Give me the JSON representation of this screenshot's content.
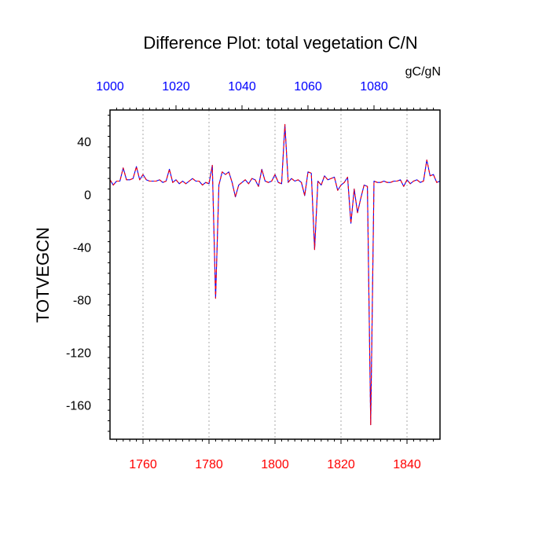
{
  "chart_data": {
    "type": "line",
    "title": "Difference Plot: total vegetation C/N",
    "units": "gC/gN",
    "ylabel": "TOTVEGCN",
    "ylim": [
      -186,
      64
    ],
    "y_ticks": [
      40,
      0,
      -40,
      -80,
      -120,
      -160
    ],
    "y_tick_labels": [
      "40",
      "0",
      "-40",
      "-80",
      "-120",
      "-160"
    ],
    "x_bottom": {
      "range": [
        1750,
        1850
      ],
      "ticks": [
        1760,
        1780,
        1800,
        1820,
        1840
      ],
      "tick_labels": [
        "1760",
        "1780",
        "1800",
        "1820",
        "1840"
      ],
      "color": "#ff0000"
    },
    "x_top": {
      "range": [
        1000,
        1100
      ],
      "ticks": [
        1000,
        1020,
        1040,
        1060,
        1080
      ],
      "tick_labels": [
        "1000",
        "1020",
        "1040",
        "1060",
        "1080"
      ],
      "color": "#0000ff"
    },
    "grid": "vertical dotted at bottom ticks",
    "series": [
      {
        "color": "#0000ff",
        "style": "solid",
        "x": [
          1750,
          1751,
          1752,
          1753,
          1754,
          1755,
          1756,
          1757,
          1758,
          1759,
          1760,
          1761,
          1762,
          1763,
          1764,
          1765,
          1766,
          1767,
          1768,
          1769,
          1770,
          1771,
          1772,
          1773,
          1774,
          1775,
          1776,
          1777,
          1778,
          1779,
          1780,
          1781,
          1782,
          1783,
          1784,
          1785,
          1786,
          1787,
          1788,
          1789,
          1790,
          1791,
          1792,
          1793,
          1794,
          1795,
          1796,
          1797,
          1798,
          1799,
          1800,
          1801,
          1802,
          1803,
          1804,
          1805,
          1806,
          1807,
          1808,
          1809,
          1810,
          1811,
          1812,
          1813,
          1814,
          1815,
          1816,
          1817,
          1818,
          1819,
          1820,
          1821,
          1822,
          1823,
          1824,
          1825,
          1826,
          1827,
          1828,
          1829,
          1830,
          1831,
          1832,
          1833,
          1834,
          1835,
          1836,
          1837,
          1838,
          1839,
          1840,
          1841,
          1842,
          1843,
          1844,
          1845,
          1846,
          1847,
          1848,
          1849,
          1850
        ],
        "values": [
          11,
          7,
          10,
          10,
          20,
          11,
          11,
          12,
          21,
          11,
          15,
          11,
          10,
          10,
          10,
          11,
          9,
          10,
          19,
          9,
          11,
          8,
          10,
          8,
          10,
          12,
          10,
          10,
          7,
          9,
          8,
          22,
          -79,
          7,
          17,
          15,
          17,
          9,
          -2,
          7,
          9,
          11,
          8,
          12,
          11,
          6,
          19,
          10,
          9,
          10,
          15,
          9,
          8,
          53,
          9,
          12,
          10,
          11,
          9,
          -1,
          17,
          16,
          -42,
          10,
          7,
          14,
          11,
          12,
          13,
          3,
          7,
          9,
          13,
          -22,
          4,
          -14,
          -3,
          7,
          6,
          -175,
          10,
          9,
          9,
          10,
          9,
          9,
          10,
          10,
          11,
          6,
          11,
          8,
          10,
          11,
          9,
          10,
          26,
          14,
          15,
          9,
          10
        ]
      },
      {
        "color": "#ff0000",
        "style": "dashed",
        "x": [
          1750,
          1751,
          1752,
          1753,
          1754,
          1755,
          1756,
          1757,
          1758,
          1759,
          1760,
          1761,
          1762,
          1763,
          1764,
          1765,
          1766,
          1767,
          1768,
          1769,
          1770,
          1771,
          1772,
          1773,
          1774,
          1775,
          1776,
          1777,
          1778,
          1779,
          1780,
          1781,
          1782,
          1783,
          1784,
          1785,
          1786,
          1787,
          1788,
          1789,
          1790,
          1791,
          1792,
          1793,
          1794,
          1795,
          1796,
          1797,
          1798,
          1799,
          1800,
          1801,
          1802,
          1803,
          1804,
          1805,
          1806,
          1807,
          1808,
          1809,
          1810,
          1811,
          1812,
          1813,
          1814,
          1815,
          1816,
          1817,
          1818,
          1819,
          1820,
          1821,
          1822,
          1823,
          1824,
          1825,
          1826,
          1827,
          1828,
          1829,
          1830,
          1831,
          1832,
          1833,
          1834,
          1835,
          1836,
          1837,
          1838,
          1839,
          1840,
          1841,
          1842,
          1843,
          1844,
          1845,
          1846,
          1847,
          1848,
          1849,
          1850
        ],
        "values": [
          11,
          7,
          10,
          10,
          20,
          11,
          11,
          12,
          21,
          11,
          15,
          11,
          10,
          10,
          10,
          11,
          9,
          10,
          19,
          9,
          11,
          8,
          10,
          8,
          10,
          12,
          10,
          10,
          7,
          9,
          8,
          22,
          -79,
          7,
          17,
          15,
          17,
          9,
          -2,
          7,
          9,
          11,
          8,
          12,
          11,
          6,
          19,
          10,
          9,
          10,
          15,
          9,
          8,
          53,
          9,
          12,
          10,
          11,
          9,
          -1,
          17,
          16,
          -42,
          10,
          7,
          14,
          11,
          12,
          13,
          3,
          7,
          9,
          13,
          -22,
          4,
          -14,
          -3,
          7,
          6,
          -175,
          10,
          9,
          9,
          10,
          9,
          9,
          10,
          10,
          11,
          6,
          11,
          8,
          10,
          11,
          9,
          10,
          26,
          14,
          15,
          9,
          10
        ]
      }
    ]
  }
}
